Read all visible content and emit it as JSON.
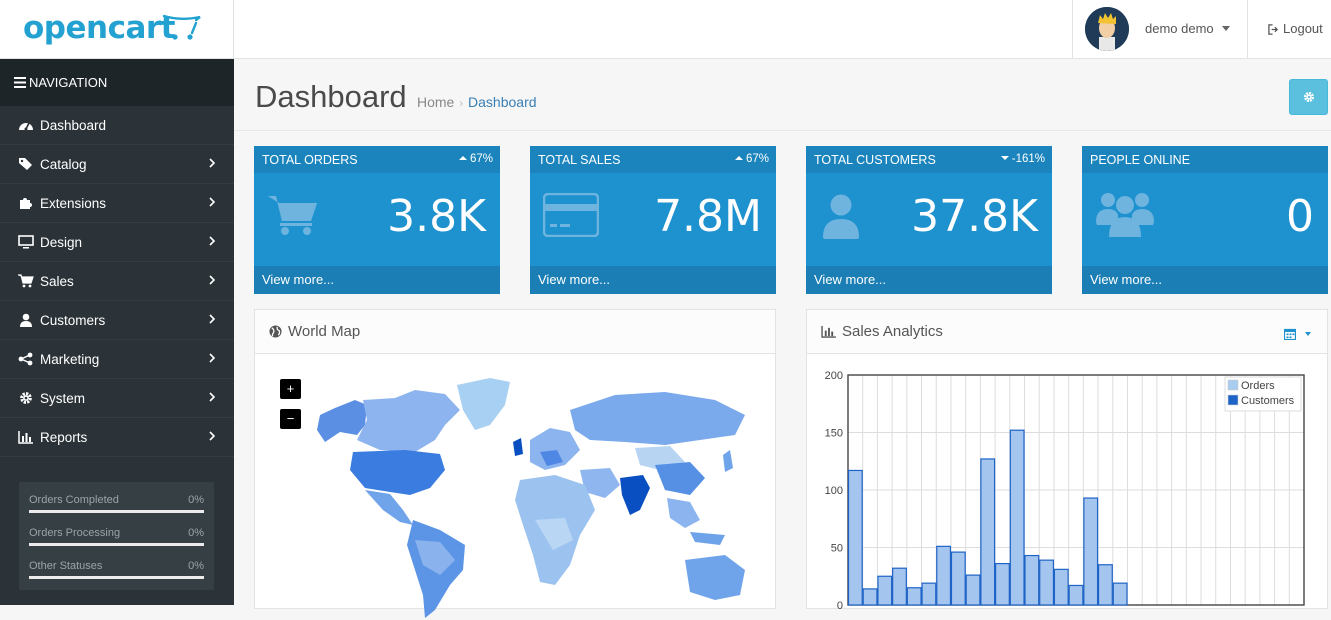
{
  "header": {
    "logo_text": "opencart",
    "user_name": "demo demo",
    "logout_label": "Logout"
  },
  "sidebar": {
    "nav_title": "NAVIGATION",
    "items": [
      {
        "label": "Dashboard",
        "icon": "dashboard-icon"
      },
      {
        "label": "Catalog",
        "icon": "tags-icon"
      },
      {
        "label": "Extensions",
        "icon": "puzzle-icon"
      },
      {
        "label": "Design",
        "icon": "monitor-icon"
      },
      {
        "label": "Sales",
        "icon": "cart-icon"
      },
      {
        "label": "Customers",
        "icon": "user-icon"
      },
      {
        "label": "Marketing",
        "icon": "share-icon"
      },
      {
        "label": "System",
        "icon": "gear-icon"
      },
      {
        "label": "Reports",
        "icon": "bar-chart-icon"
      }
    ],
    "stats": [
      {
        "label": "Orders Completed",
        "pct": "0%"
      },
      {
        "label": "Orders Processing",
        "pct": "0%"
      },
      {
        "label": "Other Statuses",
        "pct": "0%"
      }
    ]
  },
  "page": {
    "title": "Dashboard",
    "breadcrumb_home": "Home",
    "breadcrumb_current": "Dashboard"
  },
  "tiles": [
    {
      "title": "TOTAL ORDERS",
      "change": "67%",
      "direction": "up",
      "value": "3.8K",
      "more": "View more..."
    },
    {
      "title": "TOTAL SALES",
      "change": "67%",
      "direction": "up",
      "value": "7.8M",
      "more": "View more..."
    },
    {
      "title": "TOTAL CUSTOMERS",
      "change": "-161%",
      "direction": "down",
      "value": "37.8K",
      "more": "View more..."
    },
    {
      "title": "PEOPLE ONLINE",
      "change": "",
      "direction": "",
      "value": "0",
      "more": "View more..."
    }
  ],
  "world_map": {
    "title": "World Map",
    "zoom_in": "+",
    "zoom_out": "−"
  },
  "analytics": {
    "title": "Sales Analytics"
  },
  "colors": {
    "tile_bg": "#1e91cf",
    "sidebar_bg": "#2b3338",
    "accent": "#23a1d1"
  },
  "chart_data": {
    "type": "bar",
    "ylim": [
      0,
      200
    ],
    "yticks": [
      "200",
      "150",
      "100",
      "50",
      "0"
    ],
    "legend_position": "top-right",
    "series": [
      {
        "name": "Orders",
        "color": "#a8cdee",
        "values": []
      },
      {
        "name": "Customers",
        "color": "#1e63c7",
        "values": [
          117,
          14,
          25,
          32,
          15,
          19,
          51,
          46,
          26,
          127,
          36,
          152,
          43,
          39,
          31,
          17,
          93,
          35,
          19,
          0,
          0,
          0,
          0,
          0,
          0,
          0,
          0,
          0,
          0,
          0,
          0
        ]
      }
    ],
    "bar_fill": "#a4c5ee",
    "grid": true
  }
}
